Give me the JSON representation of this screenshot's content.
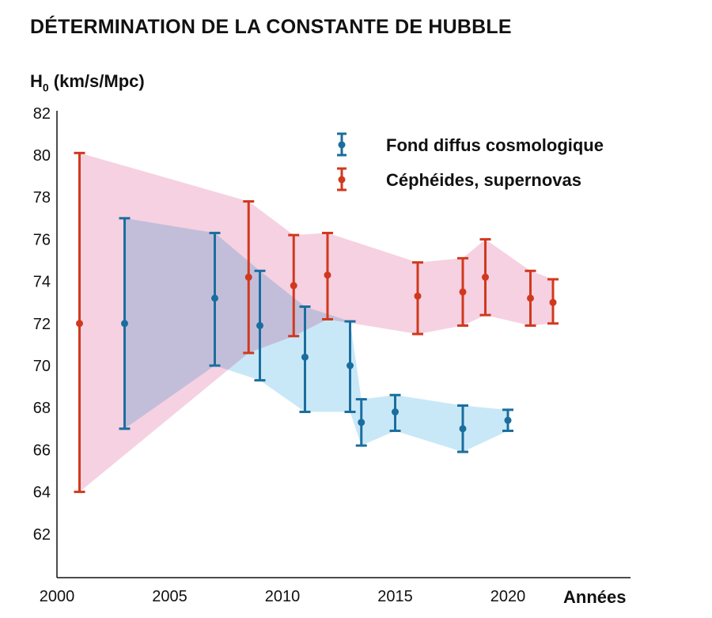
{
  "chart_data": {
    "type": "scatter",
    "title": "DÉTERMINATION DE LA CONSTANTE DE HUBBLE",
    "ylabel_main": "H",
    "ylabel_sub": "0",
    "ylabel_unit": " (km/s/Mpc)",
    "xlabel": "Années",
    "xlim": [
      2000,
      2025
    ],
    "ylim": [
      60,
      82
    ],
    "x_ticks": [
      2000,
      2005,
      2010,
      2015,
      2020
    ],
    "y_ticks": [
      62,
      64,
      66,
      68,
      70,
      72,
      74,
      76,
      78,
      80,
      82
    ],
    "legend_position": "top-right",
    "series": [
      {
        "name": "Fond diffus cosmologique",
        "color": "#1a6e9e",
        "band_color": "#bfe4f6",
        "points": [
          {
            "x": 2003,
            "y": 72.0,
            "low": 67.0,
            "high": 77.0
          },
          {
            "x": 2007,
            "y": 73.2,
            "low": 70.0,
            "high": 76.3
          },
          {
            "x": 2009,
            "y": 71.9,
            "low": 69.3,
            "high": 74.5
          },
          {
            "x": 2011,
            "y": 70.4,
            "low": 67.8,
            "high": 72.8
          },
          {
            "x": 2013,
            "y": 70.0,
            "low": 67.8,
            "high": 72.1
          },
          {
            "x": 2013.5,
            "y": 67.3,
            "low": 66.2,
            "high": 68.4
          },
          {
            "x": 2015,
            "y": 67.8,
            "low": 66.9,
            "high": 68.6
          },
          {
            "x": 2018,
            "y": 67.0,
            "low": 65.9,
            "high": 68.1
          },
          {
            "x": 2020,
            "y": 67.4,
            "low": 66.9,
            "high": 67.9
          }
        ]
      },
      {
        "name": "Céphéides, supernovas",
        "color": "#d0391e",
        "band_color": "#f6d1e1",
        "points": [
          {
            "x": 2001,
            "y": 72.0,
            "low": 64.0,
            "high": 80.1
          },
          {
            "x": 2008.5,
            "y": 74.2,
            "low": 70.6,
            "high": 77.8
          },
          {
            "x": 2010.5,
            "y": 73.8,
            "low": 71.4,
            "high": 76.2
          },
          {
            "x": 2012,
            "y": 74.3,
            "low": 72.2,
            "high": 76.3
          },
          {
            "x": 2016,
            "y": 73.3,
            "low": 71.5,
            "high": 74.9
          },
          {
            "x": 2018,
            "y": 73.5,
            "low": 71.9,
            "high": 75.1
          },
          {
            "x": 2019,
            "y": 74.2,
            "low": 72.4,
            "high": 76.0
          },
          {
            "x": 2021,
            "y": 73.2,
            "low": 71.9,
            "high": 74.5
          },
          {
            "x": 2022,
            "y": 73.0,
            "low": 72.0,
            "high": 74.1
          }
        ]
      }
    ]
  }
}
